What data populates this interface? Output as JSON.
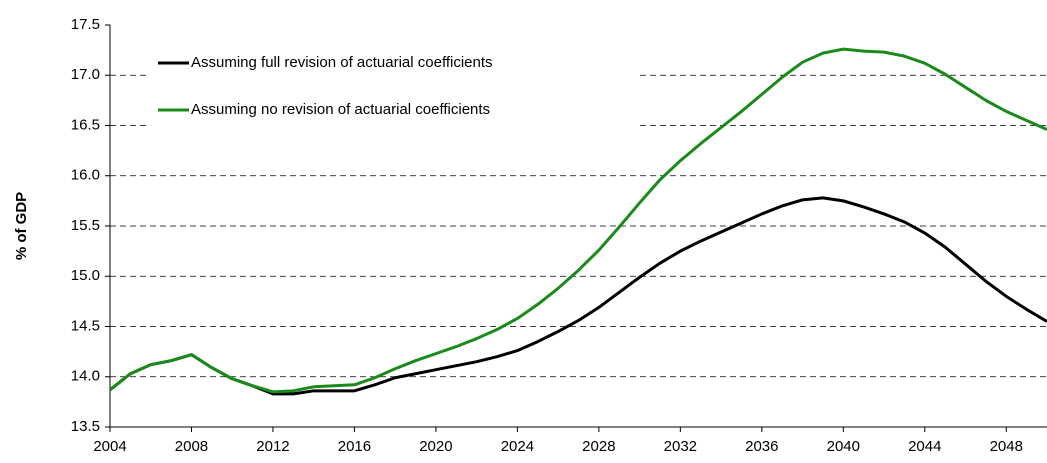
{
  "chart_data": {
    "type": "line",
    "y_label": "% of GDP",
    "x": [
      2004,
      2005,
      2006,
      2007,
      2008,
      2009,
      2010,
      2011,
      2012,
      2013,
      2014,
      2015,
      2016,
      2017,
      2018,
      2019,
      2020,
      2021,
      2022,
      2023,
      2024,
      2025,
      2026,
      2027,
      2028,
      2029,
      2030,
      2031,
      2032,
      2033,
      2034,
      2035,
      2036,
      2037,
      2038,
      2039,
      2040,
      2041,
      2042,
      2043,
      2044,
      2045,
      2046,
      2047,
      2048,
      2049,
      2050
    ],
    "series": [
      {
        "name": "Assuming full revision of actuarial coefficients",
        "color": "#000000",
        "values": [
          13.87,
          14.03,
          14.12,
          14.16,
          14.22,
          14.09,
          13.98,
          13.91,
          13.83,
          13.83,
          13.86,
          13.86,
          13.86,
          13.92,
          13.99,
          14.03,
          14.07,
          14.11,
          14.15,
          14.2,
          14.26,
          14.35,
          14.45,
          14.56,
          14.69,
          14.84,
          14.99,
          15.13,
          15.25,
          15.35,
          15.44,
          15.53,
          15.62,
          15.7,
          15.76,
          15.78,
          15.75,
          15.69,
          15.62,
          15.54,
          15.43,
          15.29,
          15.12,
          14.95,
          14.8,
          14.67,
          14.55
        ]
      },
      {
        "name": "Assuming no revision of actuarial coefficients",
        "color": "#1a8a1a",
        "values": [
          13.87,
          14.03,
          14.12,
          14.16,
          14.22,
          14.09,
          13.98,
          13.91,
          13.85,
          13.86,
          13.9,
          13.91,
          13.92,
          13.99,
          14.08,
          14.16,
          14.23,
          14.3,
          14.38,
          14.47,
          14.58,
          14.72,
          14.88,
          15.06,
          15.26,
          15.49,
          15.73,
          15.96,
          16.15,
          16.32,
          16.48,
          16.64,
          16.81,
          16.98,
          17.13,
          17.22,
          17.26,
          17.24,
          17.23,
          17.19,
          17.12,
          17.01,
          16.88,
          16.75,
          16.64,
          16.55,
          16.46
        ]
      }
    ],
    "xlim": [
      2004,
      2050
    ],
    "xticks": [
      2004,
      2008,
      2012,
      2016,
      2020,
      2024,
      2028,
      2032,
      2036,
      2040,
      2044,
      2048
    ],
    "ylim": [
      13.5,
      17.5
    ],
    "yticks": [
      {
        "value": 13.5,
        "label": "13.5"
      },
      {
        "value": 14,
        "label": "14.0"
      },
      {
        "value": 14.5,
        "label": "14.5"
      },
      {
        "value": 15,
        "label": "15.0"
      },
      {
        "value": 15.5,
        "label": "15.5"
      },
      {
        "value": 16,
        "label": "16.0"
      },
      {
        "value": 16.5,
        "label": "16.5"
      },
      {
        "value": 17,
        "label": "17.0"
      },
      {
        "value": 17.5,
        "label": "17.5"
      }
    ],
    "grid": true,
    "legend": "top-left"
  }
}
